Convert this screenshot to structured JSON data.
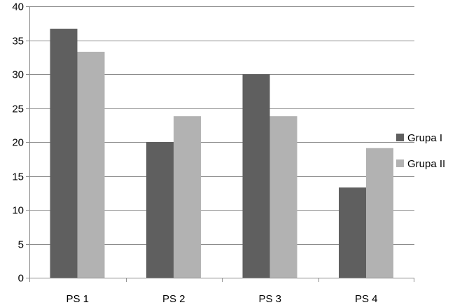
{
  "chart_data": {
    "type": "bar",
    "categories": [
      "PS 1",
      "PS 2",
      "PS 3",
      "PS 4"
    ],
    "series": [
      {
        "name": "Grupa I",
        "values": [
          36.7,
          20,
          30,
          13.3
        ],
        "color": "#5f5f5f"
      },
      {
        "name": "Grupa II",
        "values": [
          33.3,
          23.8,
          23.8,
          19.1
        ],
        "color": "#b2b2b2"
      }
    ],
    "yticks": [
      "0",
      "5",
      "10",
      "15",
      "20",
      "25",
      "30",
      "35",
      "40"
    ],
    "ylim": [
      0,
      40
    ],
    "ystep": 5,
    "grid": true,
    "legend_position": "right"
  }
}
